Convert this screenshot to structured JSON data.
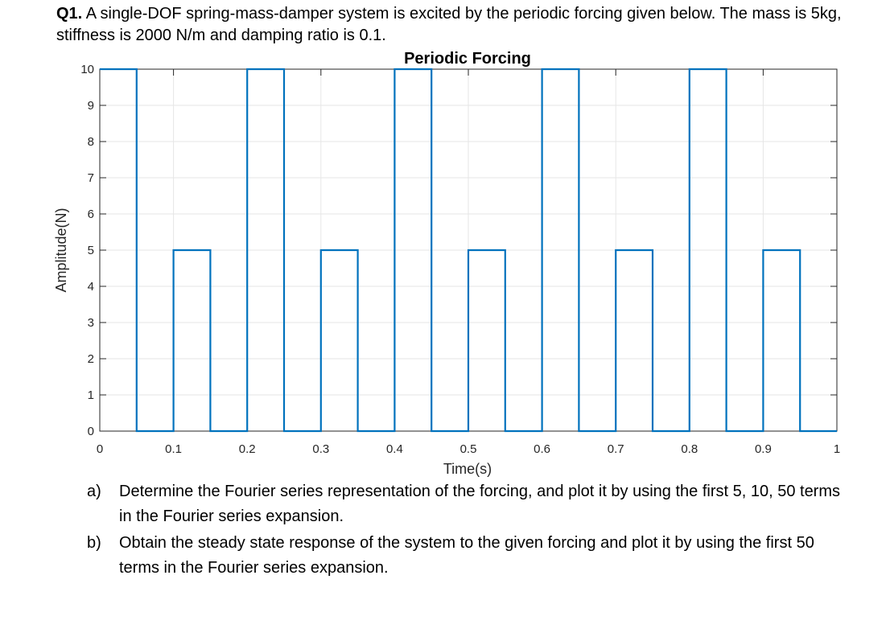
{
  "question": {
    "number": "Q1.",
    "text": "A single-DOF spring-mass-damper system is excited by the periodic forcing given below. The mass is 5kg, stiffness is 2000 N/m and damping ratio is 0.1."
  },
  "chart_data": {
    "type": "line",
    "title": "Periodic Forcing",
    "xlabel": "Time(s)",
    "ylabel": "Amplitude(N)",
    "xlim": [
      0,
      1
    ],
    "ylim": [
      0,
      10
    ],
    "xticks": [
      "0",
      "0.1",
      "0.2",
      "0.3",
      "0.4",
      "0.5",
      "0.6",
      "0.7",
      "0.8",
      "0.9",
      "1"
    ],
    "yticks": [
      "0",
      "1",
      "2",
      "3",
      "4",
      "5",
      "6",
      "7",
      "8",
      "9",
      "10"
    ],
    "series": [
      {
        "color": "#0072BD",
        "x": [
          0,
          0.05,
          0.05,
          0.1,
          0.1,
          0.15,
          0.15,
          0.2,
          0.2,
          0.25,
          0.25,
          0.3,
          0.3,
          0.35,
          0.35,
          0.4,
          0.4,
          0.45,
          0.45,
          0.5,
          0.5,
          0.55,
          0.55,
          0.6,
          0.6,
          0.65,
          0.65,
          0.7,
          0.7,
          0.75,
          0.75,
          0.8,
          0.8,
          0.85,
          0.85,
          0.9,
          0.9,
          0.95,
          0.95,
          1.0
        ],
        "y": [
          10,
          10,
          0,
          0,
          5,
          5,
          0,
          0,
          10,
          10,
          0,
          0,
          5,
          5,
          0,
          0,
          10,
          10,
          0,
          0,
          5,
          5,
          0,
          0,
          10,
          10,
          0,
          0,
          5,
          5,
          0,
          0,
          10,
          10,
          0,
          0,
          5,
          5,
          0,
          0
        ]
      }
    ],
    "grid": true
  },
  "parts": [
    {
      "label": "a)",
      "text": "Determine the Fourier series representation of the forcing, and plot it by using the first 5, 10, 50 terms in the Fourier series expansion."
    },
    {
      "label": "b)",
      "text": "Obtain the steady state response of the system to the given forcing and plot it by using the first 50 terms in the Fourier series expansion."
    }
  ]
}
